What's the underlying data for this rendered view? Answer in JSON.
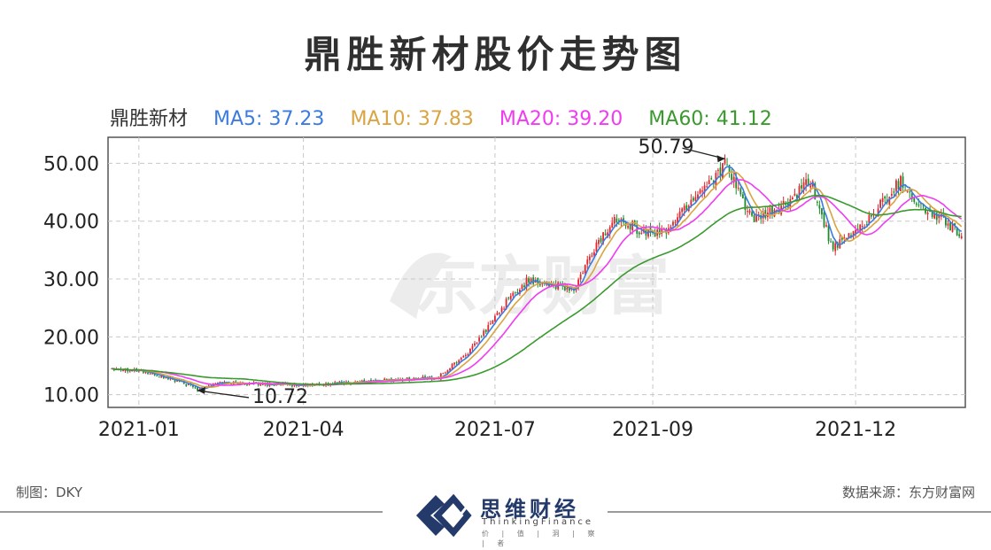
{
  "title": "鼎胜新材股价走势图",
  "legend": {
    "stock": "鼎胜新材",
    "ma5": "MA5: 37.23",
    "ma10": "MA10: 37.83",
    "ma20": "MA20: 39.20",
    "ma60": "MA60: 41.12"
  },
  "colors": {
    "up": "#e1262e",
    "down": "#1f8a2c",
    "ma5": "#3b7be0",
    "ma10": "#d9a441",
    "ma20": "#f03cf0",
    "ma60": "#3a9a2e",
    "grid": "#c8c8c8",
    "watermark": "#ececec"
  },
  "watermark": "东方财富",
  "footer": {
    "left": "制图：DKY",
    "right": "数据来源：东方财富网",
    "logo_main": "思维财经",
    "logo_sub": "ThinkingFinance",
    "logo_tag": "价 | 值 | 洞 | 察 | 者"
  },
  "chart_data": {
    "type": "candlestick",
    "y_ticks": [
      "10.00",
      "20.00",
      "30.00",
      "40.00",
      "50.00"
    ],
    "y_tick_values": [
      10,
      20,
      30,
      40,
      50
    ],
    "ylim": [
      7.8,
      54.5
    ],
    "x_ticks": [
      "2021-01",
      "2021-04",
      "2021-07",
      "2021-09",
      "2021-12"
    ],
    "x_tick_index": [
      12,
      85,
      170,
      240,
      330
    ],
    "annotations": [
      {
        "text": "10.72",
        "index": 38,
        "value": 10.72
      },
      {
        "text": "50.79",
        "index": 272,
        "value": 50.79
      }
    ],
    "num_days": 378,
    "close_path": [
      [
        0,
        14.6
      ],
      [
        12,
        14.2
      ],
      [
        25,
        12.8
      ],
      [
        38,
        11.1
      ],
      [
        48,
        12.1
      ],
      [
        85,
        11.6
      ],
      [
        115,
        12.4
      ],
      [
        145,
        13.0
      ],
      [
        160,
        18.0
      ],
      [
        175,
        26.0
      ],
      [
        185,
        30.0
      ],
      [
        205,
        28.0
      ],
      [
        215,
        36.0
      ],
      [
        225,
        41.0
      ],
      [
        235,
        38.0
      ],
      [
        245,
        38.0
      ],
      [
        260,
        45.0
      ],
      [
        272,
        49.5
      ],
      [
        285,
        40.0
      ],
      [
        300,
        43.0
      ],
      [
        310,
        47.0
      ],
      [
        320,
        35.0
      ],
      [
        335,
        40.0
      ],
      [
        350,
        47.0
      ],
      [
        360,
        42.0
      ],
      [
        370,
        40.0
      ],
      [
        378,
        37.0
      ]
    ],
    "series": [
      {
        "name": "MA5",
        "key": "ma5",
        "period": 5
      },
      {
        "name": "MA10",
        "key": "ma10",
        "period": 10
      },
      {
        "name": "MA20",
        "key": "ma20",
        "period": 20
      },
      {
        "name": "MA60",
        "key": "ma60",
        "period": 60
      }
    ]
  }
}
